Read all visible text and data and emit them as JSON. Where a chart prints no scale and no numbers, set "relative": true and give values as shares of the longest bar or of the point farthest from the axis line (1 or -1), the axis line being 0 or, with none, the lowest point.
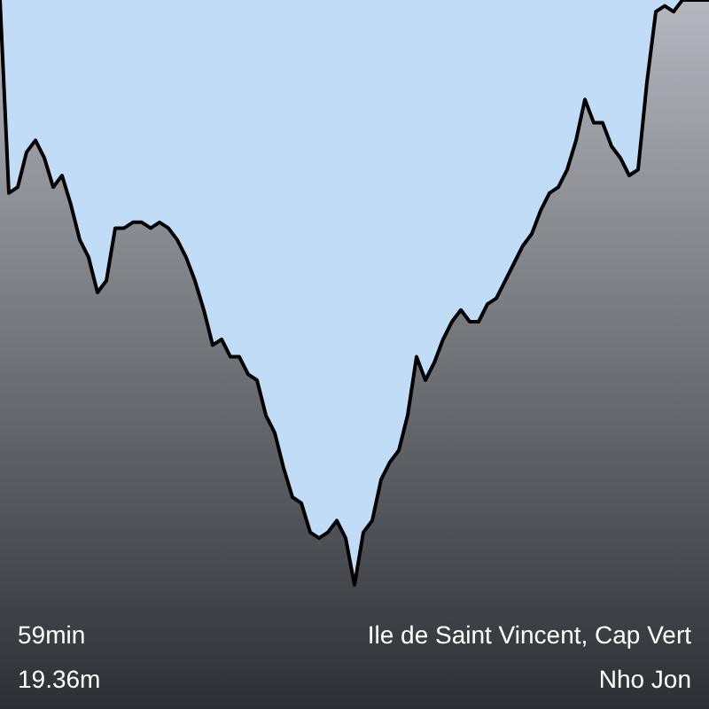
{
  "chart_data": {
    "type": "area",
    "relative": true,
    "categories": [
      null,
      null,
      null,
      null,
      null,
      null,
      null,
      null,
      null,
      null,
      null,
      null,
      null,
      null,
      null,
      null,
      null,
      null,
      null,
      null,
      null,
      null,
      null,
      null,
      null,
      null,
      null,
      null,
      null,
      null,
      null,
      null,
      null,
      null,
      null,
      null,
      null,
      null,
      null,
      null,
      null,
      null,
      null,
      null,
      null,
      null,
      null,
      null,
      null,
      null,
      null,
      null,
      null,
      null,
      null,
      null,
      null,
      null,
      null,
      null,
      null,
      null,
      null,
      null,
      null,
      null,
      null,
      null,
      null,
      null,
      null,
      null,
      null,
      null,
      null,
      null,
      null,
      null,
      null,
      null,
      null
    ],
    "series": [
      {
        "color": "#c0dcf7",
        "values": [
          0,
          -0.33,
          -0.32,
          -0.26,
          -0.24,
          -0.27,
          -0.32,
          -0.3,
          -0.35,
          -0.41,
          -0.44,
          -0.5,
          -0.48,
          -0.39,
          -0.39,
          -0.38,
          -0.38,
          -0.39,
          -0.38,
          -0.39,
          -0.41,
          -0.44,
          -0.48,
          -0.53,
          -0.59,
          -0.58,
          -0.61,
          -0.61,
          -0.64,
          -0.65,
          -0.71,
          -0.74,
          -0.8,
          -0.85,
          -0.86,
          -0.91,
          -0.92,
          -0.91,
          -0.89,
          -0.92,
          -1,
          -0.91,
          -0.89,
          -0.82,
          -0.79,
          -0.77,
          -0.71,
          -0.61,
          -0.65,
          -0.62,
          -0.58,
          -0.55,
          -0.53,
          -0.55,
          -0.55,
          -0.52,
          -0.51,
          -0.48,
          -0.45,
          -0.42,
          -0.4,
          -0.36,
          -0.33,
          -0.32,
          -0.29,
          -0.24,
          -0.17,
          -0.21,
          -0.21,
          -0.25,
          -0.27,
          -0.3,
          -0.29,
          -0.14,
          -0.02,
          -0.01,
          -0.02,
          0,
          0,
          0,
          0
        ]
      }
    ],
    "annotations": [
      "59min",
      "Ile de Saint Vincent, Cap Vert",
      "19.36m",
      "Nho Jon"
    ]
  }
}
